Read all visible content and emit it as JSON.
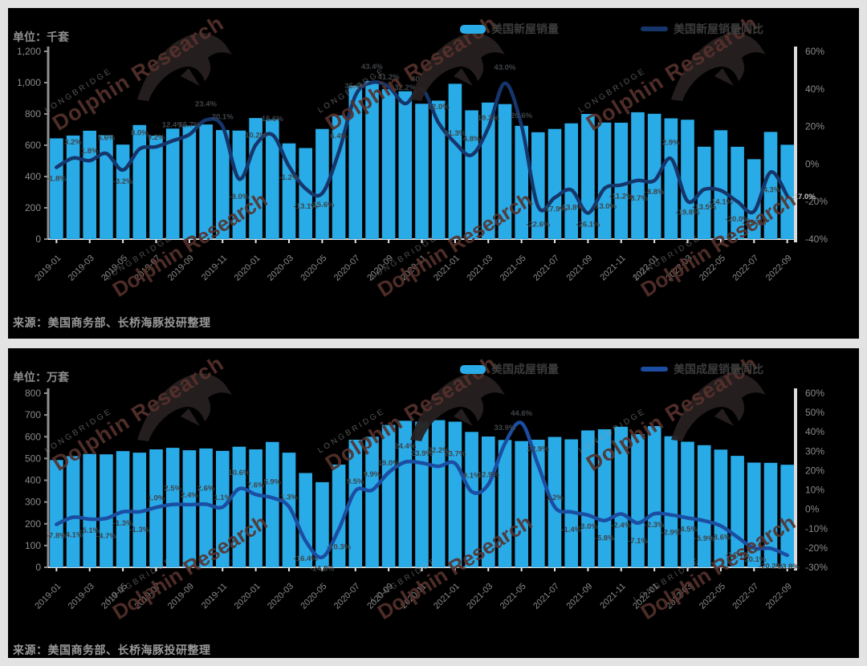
{
  "page": {
    "watermark_small": "LONGBRIDGE",
    "watermark_large": "Dolphin Research",
    "colors": {
      "bar": "#29abe8",
      "line_top": "#16366b",
      "line_bottom": "#1b4da1",
      "axis_text": "#8a8a8a",
      "point_label": "#3f4448",
      "background": "#000000",
      "frame": "#e3e3e3"
    }
  },
  "chart_data": [
    {
      "type": "bar+line",
      "unit": "单位：千套",
      "source": "来源：美国商务部、长桥海豚投研整理",
      "legend_position": "top-center",
      "grid": false,
      "x": [
        "2019-01",
        "2019-02",
        "2019-03",
        "2019-04",
        "2019-05",
        "2019-06",
        "2019-07",
        "2019-08",
        "2019-09",
        "2019-10",
        "2019-11",
        "2019-12",
        "2020-01",
        "2020-02",
        "2020-03",
        "2020-04",
        "2020-05",
        "2020-06",
        "2020-07",
        "2020-08",
        "2020-09",
        "2020-10",
        "2020-11",
        "2020-12",
        "2021-01",
        "2021-02",
        "2021-03",
        "2021-04",
        "2021-05",
        "2021-06",
        "2021-07",
        "2021-08",
        "2021-09",
        "2021-10",
        "2021-11",
        "2021-12",
        "2022-01",
        "2022-02",
        "2022-03",
        "2022-04",
        "2022-05",
        "2022-06",
        "2022-07",
        "2022-08",
        "2022-09"
      ],
      "x_tick_labels": [
        "2019-01",
        "2019-03",
        "2019-05",
        "2019-07",
        "2019-09",
        "2019-11",
        "2020-01",
        "2020-03",
        "2020-05",
        "2020-07",
        "2020-09",
        "2020-11",
        "2021-01",
        "2021-03",
        "2021-05",
        "2021-07",
        "2021-09",
        "2021-11",
        "2022-01",
        "2022-03",
        "2022-05",
        "2022-07",
        "2022-09"
      ],
      "series": [
        {
          "name": "美国新屋销量",
          "type": "bar",
          "axis": "left",
          "values": [
            644,
            662,
            693,
            664,
            604,
            729,
            661,
            706,
            725,
            733,
            697,
            694,
            774,
            765,
            612,
            582,
            704,
            791,
            979,
            1011,
            959,
            945,
            865,
            885,
            993,
            823,
            873,
            863,
            724,
            683,
            704,
            740,
            800,
            745,
            744,
            811,
            801,
            772,
            763,
            591,
            696,
            590,
            511,
            685,
            603
          ]
        },
        {
          "name": "美国新屋销量同比",
          "type": "line",
          "axis": "right",
          "unit": "%",
          "values": [
            -1.8,
            3.2,
            1.8,
            5.6,
            -3.2,
            8.0,
            9.2,
            12.4,
            15.7,
            23.4,
            20.1,
            -8.0,
            10.2,
            15.6,
            -1.2,
            -13.1,
            -15.6,
            6.4,
            36.4,
            43.4,
            41.2,
            32.2,
            40.2,
            22.0,
            11.3,
            4.8,
            19.3,
            43.0,
            20.6,
            -22.6,
            -17.9,
            -13.8,
            -26.1,
            -13.0,
            -11.2,
            -8.7,
            -8.8,
            2.9,
            -19.8,
            -13.5,
            -14.1,
            -20.0,
            -25.2,
            -4.3,
            -17.0
          ]
        }
      ],
      "left_axis": {
        "min": 0,
        "max": 1200,
        "step": 200,
        "labels": [
          "1,200",
          "1,000",
          "800",
          "600",
          "400",
          "200",
          "0"
        ]
      },
      "right_axis": {
        "min": -40,
        "max": 60,
        "step": 20,
        "labels": [
          "60%",
          "40%",
          "20%",
          "0%",
          "-20%",
          "-40%"
        ]
      }
    },
    {
      "type": "bar+line",
      "unit": "单位：万套",
      "source": "来源：美国商务部、长桥海豚投研整理",
      "legend_position": "top-center",
      "grid": false,
      "x": [
        "2019-01",
        "2019-02",
        "2019-03",
        "2019-04",
        "2019-05",
        "2019-06",
        "2019-07",
        "2019-08",
        "2019-09",
        "2019-10",
        "2019-11",
        "2019-12",
        "2020-01",
        "2020-02",
        "2020-03",
        "2020-04",
        "2020-05",
        "2020-06",
        "2020-07",
        "2020-08",
        "2020-09",
        "2020-10",
        "2020-11",
        "2020-12",
        "2021-01",
        "2021-02",
        "2021-03",
        "2021-04",
        "2021-05",
        "2021-06",
        "2021-07",
        "2021-08",
        "2021-09",
        "2021-10",
        "2021-11",
        "2021-12",
        "2022-01",
        "2022-02",
        "2022-03",
        "2022-04",
        "2022-05",
        "2022-06",
        "2022-07",
        "2022-08",
        "2022-09"
      ],
      "x_tick_labels": [
        "2019-01",
        "2019-03",
        "2019-05",
        "2019-07",
        "2019-09",
        "2019-11",
        "2020-01",
        "2020-03",
        "2020-05",
        "2020-07",
        "2020-09",
        "2020-11",
        "2021-01",
        "2021-03",
        "2021-05",
        "2021-07",
        "2021-09",
        "2021-11",
        "2022-01",
        "2022-03",
        "2022-05",
        "2022-07",
        "2022-09"
      ],
      "series": [
        {
          "name": "美国成屋销量",
          "type": "bar",
          "axis": "left",
          "values": [
            493,
            511,
            521,
            519,
            534,
            527,
            542,
            549,
            538,
            546,
            535,
            554,
            542,
            576,
            527,
            433,
            391,
            472,
            586,
            600,
            654,
            673,
            669,
            676,
            669,
            622,
            601,
            585,
            580,
            586,
            599,
            588,
            629,
            634,
            646,
            612,
            649,
            602,
            577,
            561,
            541,
            512,
            481,
            480,
            471
          ]
        },
        {
          "name": "美国成屋销量同比",
          "type": "line",
          "axis": "right",
          "unit": "%",
          "values": [
            -7.8,
            -4.1,
            -5.1,
            -4.7,
            -1.3,
            -1.3,
            1.0,
            2.5,
            2.4,
            2.6,
            1.1,
            10.6,
            7.6,
            5.9,
            1.3,
            -16.4,
            -24.8,
            -10.3,
            9.5,
            9.9,
            19.0,
            24.4,
            23.9,
            22.2,
            23.7,
            9.1,
            12.9,
            33.9,
            44.6,
            22.9,
            1.2,
            -1.4,
            -3.0,
            -5.8,
            -2.4,
            -7.1,
            -2.3,
            -2.9,
            -4.5,
            -5.9,
            -8.6,
            -14.4,
            -20.1,
            -20.2,
            -23.8
          ]
        }
      ],
      "left_axis": {
        "min": 0,
        "max": 800,
        "step": 100,
        "labels": [
          "800",
          "700",
          "600",
          "500",
          "400",
          "300",
          "200",
          "100",
          "0"
        ]
      },
      "right_axis": {
        "min": -30,
        "max": 60,
        "step": 10,
        "labels": [
          "60%",
          "50%",
          "40%",
          "30%",
          "20%",
          "10%",
          "0%",
          "-10%",
          "-20%",
          "-30%"
        ]
      }
    }
  ]
}
